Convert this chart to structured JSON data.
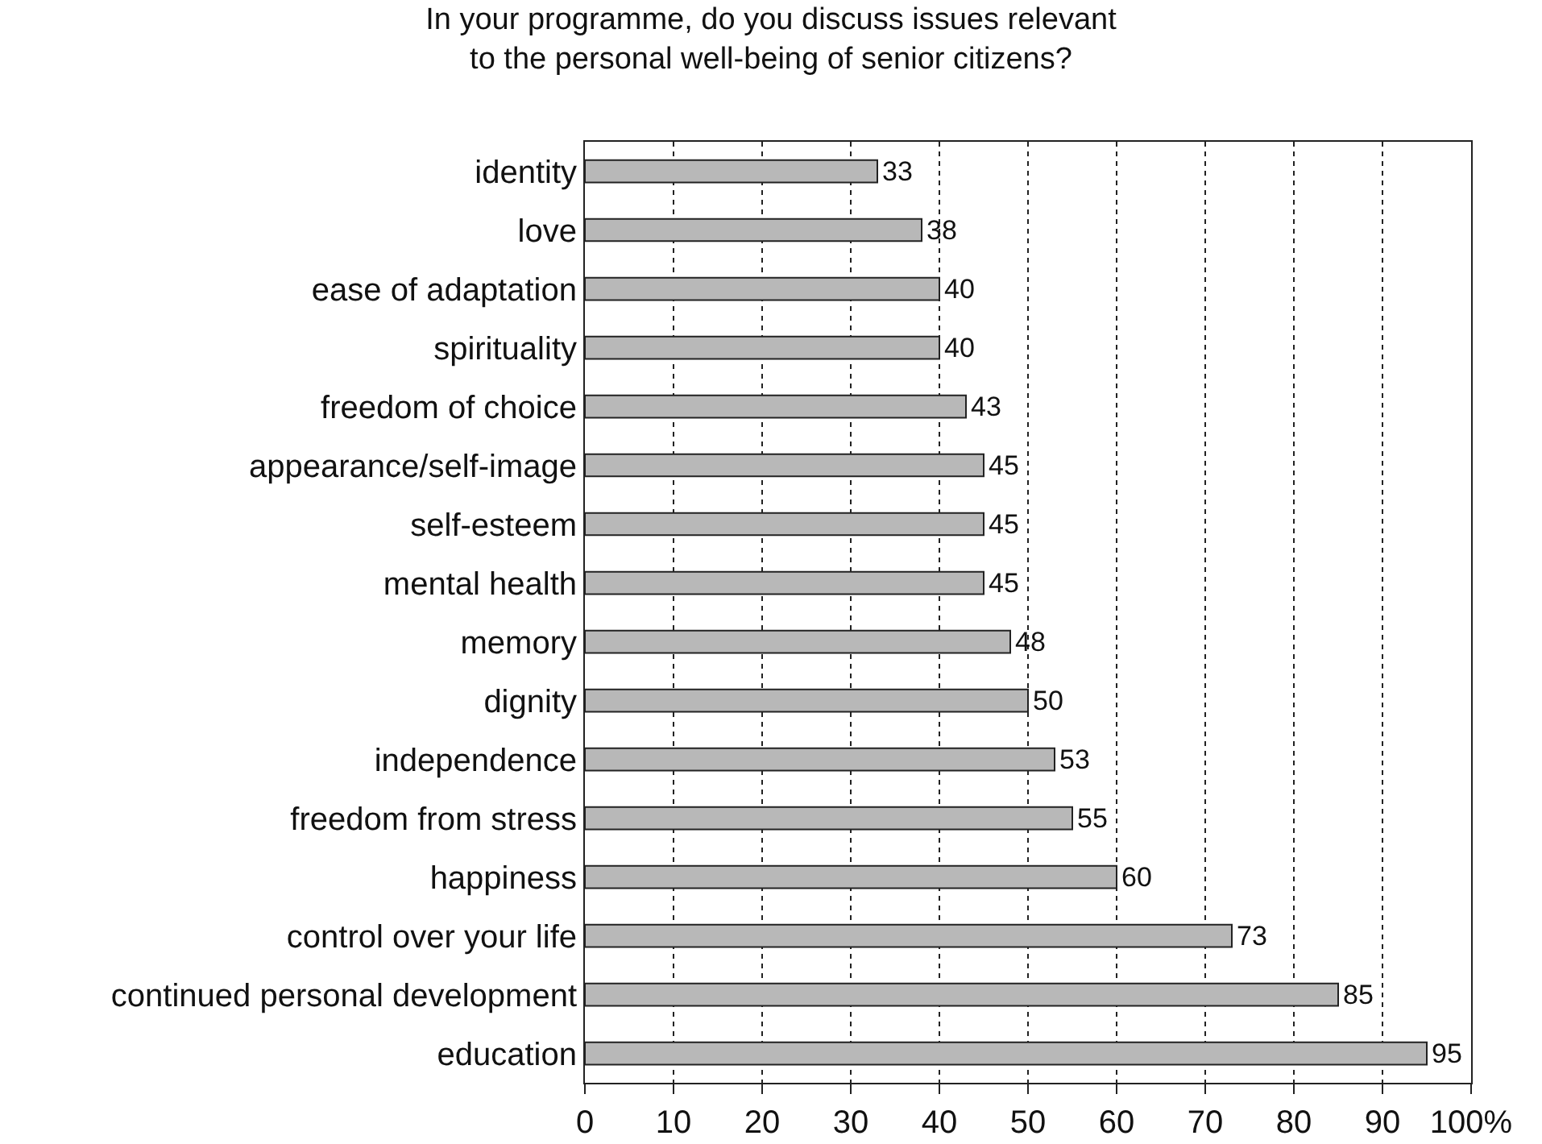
{
  "chart_data": {
    "type": "bar",
    "orientation": "horizontal",
    "title": "In your programme, do you discuss issues relevant\nto the personal well-being of senior citizens?",
    "categories": [
      "identity",
      "love",
      "ease of adaptation",
      "spirituality",
      "freedom of choice",
      "appearance/self-image",
      "self-esteem",
      "mental health",
      "memory",
      "dignity",
      "independence",
      "freedom from stress",
      "happiness",
      "control over your life",
      "continued personal development",
      "education"
    ],
    "values": [
      33,
      38,
      40,
      40,
      43,
      45,
      45,
      45,
      48,
      50,
      53,
      55,
      60,
      73,
      85,
      95
    ],
    "color": "#b8b8b8",
    "data_labels": true,
    "grid": "x",
    "legend": false,
    "xlim": [
      0,
      100
    ],
    "xticks": [
      0,
      10,
      20,
      30,
      40,
      50,
      60,
      70,
      80,
      90,
      {
        "value": 100,
        "label": "100%"
      }
    ]
  }
}
